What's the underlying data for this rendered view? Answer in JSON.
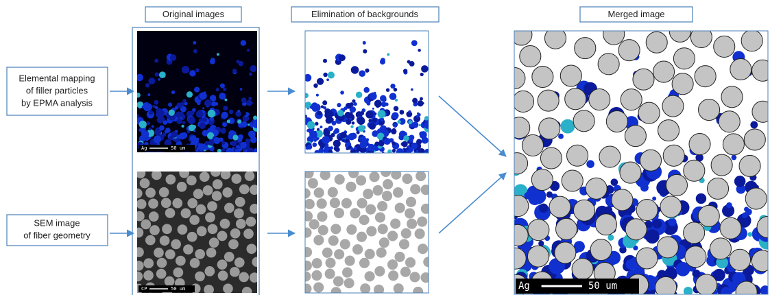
{
  "headers": [
    "Original images",
    "Elimination of backgrounds",
    "Merged image"
  ],
  "inputs": [
    {
      "lines": [
        "Elemental mapping",
        "of filler particles",
        "by EPMA analysis"
      ]
    },
    {
      "lines": [
        "SEM image",
        "of fiber geometry"
      ]
    }
  ],
  "scale_bars": [
    {
      "element": "Ag",
      "length": "50 um"
    },
    {
      "element": "CP",
      "length": "50 um"
    },
    {
      "element": "Ag",
      "length": "50 um"
    }
  ]
}
